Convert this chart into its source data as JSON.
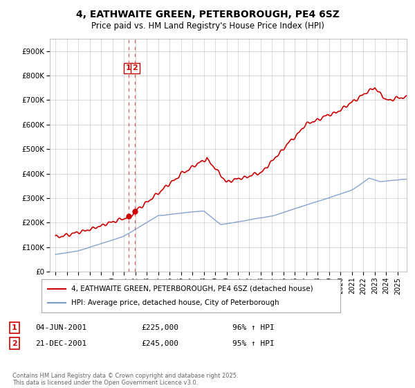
{
  "title": "4, EATHWAITE GREEN, PETERBOROUGH, PE4 6SZ",
  "subtitle": "Price paid vs. HM Land Registry's House Price Index (HPI)",
  "legend1": "4, EATHWAITE GREEN, PETERBOROUGH, PE4 6SZ (detached house)",
  "legend2": "HPI: Average price, detached house, City of Peterborough",
  "red_color": "#cc0000",
  "blue_color": "#7799cc",
  "annotation1_date": "04-JUN-2001",
  "annotation1_price": "£225,000",
  "annotation1_hpi": "96% ↑ HPI",
  "annotation2_date": "21-DEC-2001",
  "annotation2_price": "£245,000",
  "annotation2_hpi": "95% ↑ HPI",
  "footnote": "Contains HM Land Registry data © Crown copyright and database right 2025.\nThis data is licensed under the Open Government Licence v3.0.",
  "background_color": "#ffffff",
  "grid_color": "#cccccc",
  "ytick_labels": [
    "£0",
    "£100K",
    "£200K",
    "£300K",
    "£400K",
    "£500K",
    "£600K",
    "£700K",
    "£800K",
    "£900K"
  ],
  "yticks": [
    0,
    100000,
    200000,
    300000,
    400000,
    500000,
    600000,
    700000,
    800000,
    900000
  ],
  "ylim": [
    0,
    950000
  ]
}
